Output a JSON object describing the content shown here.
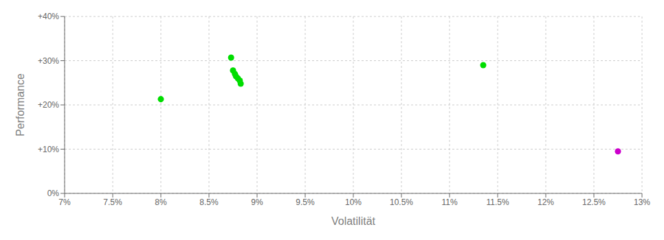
{
  "chart_data": {
    "type": "scatter",
    "xlabel": "Volatilität",
    "ylabel": "Performance",
    "xlim": [
      0.07,
      0.13
    ],
    "ylim": [
      0.0,
      0.4
    ],
    "xticks": [
      {
        "value": 0.07,
        "label": "7%"
      },
      {
        "value": 0.075,
        "label": "7.5%"
      },
      {
        "value": 0.08,
        "label": "8%"
      },
      {
        "value": 0.085,
        "label": "8.5%"
      },
      {
        "value": 0.09,
        "label": "9%"
      },
      {
        "value": 0.095,
        "label": "9.5%"
      },
      {
        "value": 0.1,
        "label": "10%"
      },
      {
        "value": 0.105,
        "label": "10.5%"
      },
      {
        "value": 0.11,
        "label": "11%"
      },
      {
        "value": 0.115,
        "label": "11.5%"
      },
      {
        "value": 0.12,
        "label": "12%"
      },
      {
        "value": 0.125,
        "label": "12.5%"
      },
      {
        "value": 0.13,
        "label": "13%"
      }
    ],
    "yticks": [
      {
        "value": 0.0,
        "label": "0%"
      },
      {
        "value": 0.1,
        "label": "+10%"
      },
      {
        "value": 0.2,
        "label": "+20%"
      },
      {
        "value": 0.3,
        "label": "+30%"
      },
      {
        "value": 0.4,
        "label": "+40%"
      }
    ],
    "grid": true,
    "series": [
      {
        "color": "#00dd00",
        "x": [
          0.08,
          0.0873,
          0.0875,
          0.0877,
          0.0878,
          0.088,
          0.0882,
          0.0883,
          0.1135
        ],
        "values": [
          0.213,
          0.307,
          0.278,
          0.27,
          0.265,
          0.26,
          0.255,
          0.248,
          0.29
        ]
      },
      {
        "color": "#cc00cc",
        "x": [
          0.1275
        ],
        "values": [
          0.095
        ]
      }
    ]
  }
}
